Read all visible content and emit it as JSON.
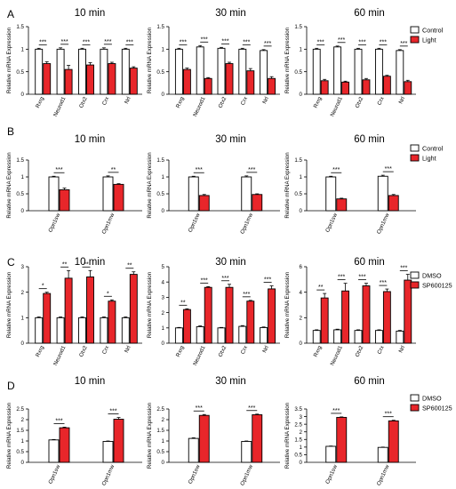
{
  "colors": {
    "control": "#ffffff",
    "treated": "#e8262a",
    "stroke": "#000000"
  },
  "chart_data": [
    {
      "panel_letter": "A",
      "type": "bar",
      "ylabel": "Relative mRNA Expression",
      "legend": [
        "Control",
        "Light"
      ],
      "charts": [
        {
          "title": "10 min",
          "categories": [
            "Rxrg",
            "Neurod1",
            "Otx2",
            "Crx",
            "Nrl"
          ],
          "ylim": [
            0,
            1.5
          ],
          "yticks": [
            0,
            0.5,
            1,
            1.5
          ],
          "series": [
            {
              "name": "Control",
              "values": [
                1.0,
                1.0,
                1.0,
                1.0,
                1.0
              ],
              "err": [
                0.02,
                0.03,
                0.02,
                0.03,
                0.02
              ]
            },
            {
              "name": "Light",
              "values": [
                0.68,
                0.55,
                0.65,
                0.68,
                0.58
              ],
              "err": [
                0.04,
                0.09,
                0.05,
                0.03,
                0.03
              ]
            }
          ],
          "signif": [
            "***",
            "***",
            "***",
            "***",
            "***"
          ]
        },
        {
          "title": "30 min",
          "categories": [
            "Rxrg",
            "Neurod1",
            "Otx2",
            "Crx",
            "Nrl"
          ],
          "ylim": [
            0,
            1.5
          ],
          "yticks": [
            0,
            0.5,
            1,
            1.5
          ],
          "series": [
            {
              "name": "Control",
              "values": [
                1.0,
                1.05,
                1.02,
                1.0,
                0.97
              ],
              "err": [
                0.02,
                0.03,
                0.02,
                0.02,
                0.02
              ]
            },
            {
              "name": "Light",
              "values": [
                0.55,
                0.35,
                0.68,
                0.52,
                0.35
              ],
              "err": [
                0.03,
                0.02,
                0.03,
                0.05,
                0.04
              ]
            }
          ],
          "signif": [
            "***",
            "***",
            "***",
            "***",
            "***"
          ]
        },
        {
          "title": "60 min",
          "categories": [
            "Rxrg",
            "Neurod1",
            "Otx2",
            "Crx",
            "Nrl"
          ],
          "ylim": [
            0,
            1.5
          ],
          "yticks": [
            0,
            0.5,
            1,
            1.5
          ],
          "series": [
            {
              "name": "Control",
              "values": [
                1.0,
                1.05,
                1.0,
                1.0,
                0.97
              ],
              "err": [
                0.02,
                0.02,
                0.02,
                0.02,
                0.02
              ]
            },
            {
              "name": "Light",
              "values": [
                0.3,
                0.27,
                0.32,
                0.4,
                0.28
              ],
              "err": [
                0.03,
                0.02,
                0.03,
                0.02,
                0.03
              ]
            }
          ],
          "signif": [
            "***",
            "***",
            "***",
            "***",
            "***"
          ]
        }
      ]
    },
    {
      "panel_letter": "B",
      "type": "bar",
      "ylabel": "Relative mRNA Expression",
      "legend": [
        "Control",
        "Light"
      ],
      "charts": [
        {
          "title": "10 min",
          "categories": [
            "Opn1sw",
            "Opn1mw"
          ],
          "ylim": [
            0,
            1.5
          ],
          "yticks": [
            0,
            0.5,
            1,
            1.5
          ],
          "series": [
            {
              "name": "Control",
              "values": [
                1.0,
                1.0
              ],
              "err": [
                0.02,
                0.03
              ]
            },
            {
              "name": "Light",
              "values": [
                0.62,
                0.78
              ],
              "err": [
                0.05,
                0.02
              ]
            }
          ],
          "signif": [
            "***",
            "**"
          ]
        },
        {
          "title": "30 min",
          "categories": [
            "Opn1sw",
            "Opn1mw"
          ],
          "ylim": [
            0,
            1.5
          ],
          "yticks": [
            0,
            0.5,
            1,
            1.5
          ],
          "series": [
            {
              "name": "Control",
              "values": [
                1.0,
                1.0
              ],
              "err": [
                0.02,
                0.03
              ]
            },
            {
              "name": "Light",
              "values": [
                0.45,
                0.48
              ],
              "err": [
                0.03,
                0.02
              ]
            }
          ],
          "signif": [
            "***",
            "***"
          ]
        },
        {
          "title": "60 min",
          "categories": [
            "Opn1sw",
            "Opn1mw"
          ],
          "ylim": [
            0,
            1.5
          ],
          "yticks": [
            0,
            0.5,
            1,
            1.5
          ],
          "series": [
            {
              "name": "Control",
              "values": [
                1.0,
                1.02
              ],
              "err": [
                0.02,
                0.03
              ]
            },
            {
              "name": "Light",
              "values": [
                0.35,
                0.45
              ],
              "err": [
                0.02,
                0.03
              ]
            }
          ],
          "signif": [
            "***",
            "***"
          ]
        }
      ]
    },
    {
      "panel_letter": "C",
      "type": "bar",
      "ylabel": "Relative mRNA Expression",
      "legend": [
        "DMSO",
        "SP600125"
      ],
      "charts": [
        {
          "title": "10 min",
          "categories": [
            "Rxrg",
            "Neurod1",
            "Otx2",
            "Crx",
            "Nrl"
          ],
          "ylim": [
            0,
            3
          ],
          "yticks": [
            0,
            1,
            2,
            3
          ],
          "series": [
            {
              "name": "DMSO",
              "values": [
                1.0,
                1.0,
                1.0,
                1.0,
                1.0
              ],
              "err": [
                0.03,
                0.03,
                0.03,
                0.03,
                0.03
              ]
            },
            {
              "name": "SP600125",
              "values": [
                1.95,
                2.55,
                2.6,
                1.65,
                2.7
              ],
              "err": [
                0.05,
                0.3,
                0.25,
                0.05,
                0.1
              ]
            }
          ],
          "signif": [
            "*",
            "**",
            "**",
            "*",
            "**"
          ]
        },
        {
          "title": "30 min",
          "categories": [
            "Rxrg",
            "Neurod1",
            "Otx2",
            "Crx",
            "Nrl"
          ],
          "ylim": [
            0,
            5
          ],
          "yticks": [
            0,
            1,
            2,
            3,
            4,
            5
          ],
          "series": [
            {
              "name": "DMSO",
              "values": [
                1.0,
                1.08,
                1.0,
                1.1,
                1.02
              ],
              "err": [
                0.03,
                0.05,
                0.03,
                0.05,
                0.04
              ]
            },
            {
              "name": "SP600125",
              "values": [
                2.2,
                3.65,
                3.65,
                2.75,
                3.55
              ],
              "err": [
                0.05,
                0.05,
                0.2,
                0.05,
                0.2
              ]
            }
          ],
          "signif": [
            "**",
            "***",
            "***",
            "***",
            "***"
          ]
        },
        {
          "title": "60 min",
          "categories": [
            "Rxrg",
            "Neurod1",
            "Otx2",
            "Crx",
            "Nrl"
          ],
          "ylim": [
            0,
            6
          ],
          "yticks": [
            0,
            2,
            4,
            6
          ],
          "series": [
            {
              "name": "DMSO",
              "values": [
                1.0,
                1.05,
                1.0,
                1.0,
                0.95
              ],
              "err": [
                0.05,
                0.05,
                0.05,
                0.05,
                0.05
              ]
            },
            {
              "name": "SP600125",
              "values": [
                3.55,
                4.1,
                4.5,
                4.05,
                4.95
              ],
              "err": [
                0.35,
                0.6,
                0.2,
                0.2,
                0.45
              ]
            }
          ],
          "signif": [
            "**",
            "***",
            "***",
            "***",
            "***"
          ]
        }
      ]
    },
    {
      "panel_letter": "D",
      "type": "bar",
      "ylabel": "Relative mRNA Expression",
      "legend": [
        "DMSO",
        "SP600125"
      ],
      "charts": [
        {
          "title": "10 min",
          "categories": [
            "Opn1sw",
            "Opn1mw"
          ],
          "ylim": [
            0,
            2.5
          ],
          "yticks": [
            0,
            0.5,
            1,
            1.5,
            2,
            2.5
          ],
          "series": [
            {
              "name": "DMSO",
              "values": [
                1.05,
                0.98
              ],
              "err": [
                0.02,
                0.02
              ]
            },
            {
              "name": "SP600125",
              "values": [
                1.62,
                2.02
              ],
              "err": [
                0.03,
                0.08
              ]
            }
          ],
          "signif": [
            "***",
            "***"
          ]
        },
        {
          "title": "30 min",
          "categories": [
            "Opn1sw",
            "Opn1mw"
          ],
          "ylim": [
            0,
            2.5
          ],
          "yticks": [
            0,
            0.5,
            1,
            1.5,
            2,
            2.5
          ],
          "series": [
            {
              "name": "DMSO",
              "values": [
                1.12,
                0.98
              ],
              "err": [
                0.03,
                0.02
              ]
            },
            {
              "name": "SP600125",
              "values": [
                2.2,
                2.23
              ],
              "err": [
                0.04,
                0.03
              ]
            }
          ],
          "signif": [
            "***",
            "***"
          ]
        },
        {
          "title": "60 min",
          "categories": [
            "Opn1sw",
            "Opn1mw"
          ],
          "ylim": [
            0,
            3.5
          ],
          "yticks": [
            0,
            0.5,
            1,
            1.5,
            2,
            2.5,
            3,
            3.5
          ],
          "series": [
            {
              "name": "DMSO",
              "values": [
                1.05,
                0.98
              ],
              "err": [
                0.02,
                0.02
              ]
            },
            {
              "name": "SP600125",
              "values": [
                2.95,
                2.72
              ],
              "err": [
                0.03,
                0.04
              ]
            }
          ],
          "signif": [
            "***",
            "***"
          ]
        }
      ]
    }
  ]
}
